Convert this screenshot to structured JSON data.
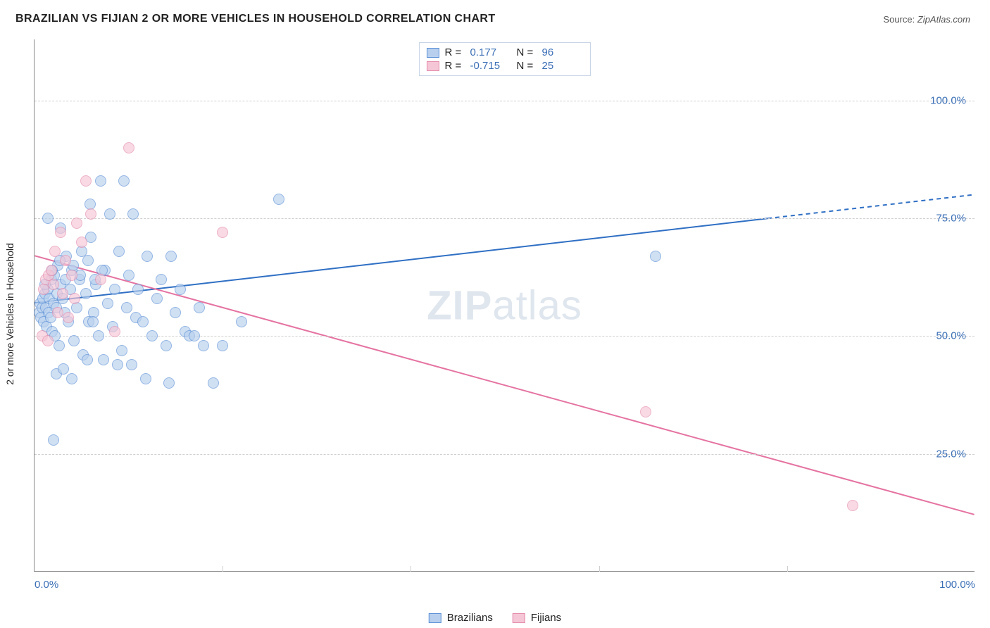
{
  "title": "BRAZILIAN VS FIJIAN 2 OR MORE VEHICLES IN HOUSEHOLD CORRELATION CHART",
  "source_label": "Source:",
  "source_value": "ZipAtlas.com",
  "watermark": {
    "bold": "ZIP",
    "rest": "atlas"
  },
  "chart": {
    "type": "scatter",
    "xlim": [
      0,
      100
    ],
    "ylim": [
      0,
      113
    ],
    "y_ticks": [
      25,
      50,
      75,
      100
    ],
    "y_tick_labels": [
      "25.0%",
      "50.0%",
      "75.0%",
      "100.0%"
    ],
    "x_ticks": [
      0,
      100
    ],
    "x_tick_labels": [
      "0.0%",
      "100.0%"
    ],
    "x_minor_ticks": [
      20,
      40,
      60,
      80
    ],
    "ylabel": "2 or more Vehicles in Household",
    "grid_color": "#d0d0d0",
    "axis_color": "#888888",
    "background_color": "#ffffff",
    "tick_label_color": "#3b6fb6",
    "point_radius": 8,
    "point_stroke_width": 1,
    "trend_line_width": 2,
    "series": [
      {
        "name": "Brazilians",
        "fill": "#b8d0ee",
        "stroke": "#5a8fd6",
        "fill_opacity": 0.65,
        "r_value": "0.177",
        "n_value": "96",
        "trend": {
          "x1": 0,
          "y1": 57,
          "x2": 100,
          "y2": 80,
          "color": "#2f6fc4",
          "dashed_after_x": 78
        },
        "points": [
          [
            0.5,
            55
          ],
          [
            0.6,
            57
          ],
          [
            0.7,
            54
          ],
          [
            0.8,
            56
          ],
          [
            0.9,
            58
          ],
          [
            1.0,
            53
          ],
          [
            1.1,
            59
          ],
          [
            1.2,
            56
          ],
          [
            1.3,
            52
          ],
          [
            1.4,
            60
          ],
          [
            1.5,
            55
          ],
          [
            1.6,
            58
          ],
          [
            1.7,
            54
          ],
          [
            1.8,
            62
          ],
          [
            1.9,
            51
          ],
          [
            2.0,
            57
          ],
          [
            2.1,
            63
          ],
          [
            2.2,
            50
          ],
          [
            2.3,
            56
          ],
          [
            2.4,
            59
          ],
          [
            2.5,
            65
          ],
          [
            2.6,
            48
          ],
          [
            2.8,
            61
          ],
          [
            3.0,
            58
          ],
          [
            3.2,
            55
          ],
          [
            3.4,
            67
          ],
          [
            3.6,
            53
          ],
          [
            3.8,
            60
          ],
          [
            4.0,
            64
          ],
          [
            4.2,
            49
          ],
          [
            4.5,
            56
          ],
          [
            4.8,
            62
          ],
          [
            5.0,
            68
          ],
          [
            5.2,
            46
          ],
          [
            5.5,
            59
          ],
          [
            5.8,
            53
          ],
          [
            6.0,
            71
          ],
          [
            6.3,
            55
          ],
          [
            6.5,
            61
          ],
          [
            6.8,
            50
          ],
          [
            7.0,
            83
          ],
          [
            7.3,
            45
          ],
          [
            7.5,
            64
          ],
          [
            7.8,
            57
          ],
          [
            8.0,
            76
          ],
          [
            8.3,
            52
          ],
          [
            8.5,
            60
          ],
          [
            9.0,
            68
          ],
          [
            9.3,
            47
          ],
          [
            9.5,
            83
          ],
          [
            9.8,
            56
          ],
          [
            10.0,
            63
          ],
          [
            10.3,
            44
          ],
          [
            10.5,
            76
          ],
          [
            10.8,
            54
          ],
          [
            11.0,
            60
          ],
          [
            11.5,
            53
          ],
          [
            12.0,
            67
          ],
          [
            12.5,
            50
          ],
          [
            13.0,
            58
          ],
          [
            13.5,
            62
          ],
          [
            14.0,
            48
          ],
          [
            14.5,
            67
          ],
          [
            15.0,
            55
          ],
          [
            15.5,
            60
          ],
          [
            16.0,
            51
          ],
          [
            16.5,
            50
          ],
          [
            17.0,
            50
          ],
          [
            17.5,
            56
          ],
          [
            18.0,
            48
          ],
          [
            2.0,
            28
          ],
          [
            4.0,
            41
          ],
          [
            11.8,
            41
          ],
          [
            14.3,
            40
          ],
          [
            2.3,
            42
          ],
          [
            3.1,
            43
          ],
          [
            5.6,
            45
          ],
          [
            8.8,
            44
          ],
          [
            1.1,
            61
          ],
          [
            1.9,
            64
          ],
          [
            2.7,
            66
          ],
          [
            3.3,
            62
          ],
          [
            4.1,
            65
          ],
          [
            4.9,
            63
          ],
          [
            5.7,
            66
          ],
          [
            6.4,
            62
          ],
          [
            7.2,
            64
          ],
          [
            22.0,
            53
          ],
          [
            20.0,
            48
          ],
          [
            19.0,
            40
          ],
          [
            26.0,
            79
          ],
          [
            66.0,
            67
          ],
          [
            1.4,
            75
          ],
          [
            2.8,
            73
          ],
          [
            5.9,
            78
          ],
          [
            6.2,
            53
          ]
        ]
      },
      {
        "name": "Fijians",
        "fill": "#f5c6d6",
        "stroke": "#e48aab",
        "fill_opacity": 0.65,
        "r_value": "-0.715",
        "n_value": "25",
        "trend": {
          "x1": 0,
          "y1": 67,
          "x2": 100,
          "y2": 12,
          "color": "#e573a1",
          "dashed_after_x": null
        },
        "points": [
          [
            0.8,
            50
          ],
          [
            1.0,
            60
          ],
          [
            1.2,
            62
          ],
          [
            1.5,
            63
          ],
          [
            1.8,
            64
          ],
          [
            2.0,
            61
          ],
          [
            2.2,
            68
          ],
          [
            2.5,
            55
          ],
          [
            2.8,
            72
          ],
          [
            3.0,
            59
          ],
          [
            3.3,
            66
          ],
          [
            3.6,
            54
          ],
          [
            4.0,
            63
          ],
          [
            4.5,
            74
          ],
          [
            5.0,
            70
          ],
          [
            5.5,
            83
          ],
          [
            6.0,
            76
          ],
          [
            7.0,
            62
          ],
          [
            8.5,
            51
          ],
          [
            10.0,
            90
          ],
          [
            20.0,
            72
          ],
          [
            65.0,
            34
          ],
          [
            87.0,
            14
          ],
          [
            4.3,
            58
          ],
          [
            1.4,
            49
          ]
        ]
      }
    ],
    "legend_labels": [
      "Brazilians",
      "Fijians"
    ],
    "stats_labels": {
      "r": "R =",
      "n": "N ="
    }
  }
}
